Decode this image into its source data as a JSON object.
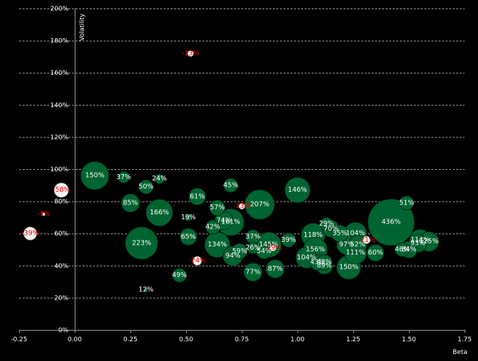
{
  "chart_data": {
    "type": "scatter",
    "subtype": "bubble",
    "title": "",
    "xlabel": "Beta",
    "ylabel": "Volatility",
    "xlim": [
      -0.25,
      1.75
    ],
    "ylim": [
      0,
      200
    ],
    "x_ticks": [
      "-0.25",
      "0.00",
      "0.25",
      "0.50",
      "0.75",
      "1.00",
      "1.25",
      "1.50",
      "1.75"
    ],
    "y_ticks": [
      "0%",
      "20%",
      "40%",
      "60%",
      "80%",
      "100%",
      "120%",
      "140%",
      "160%",
      "180%",
      "200%"
    ],
    "grid": "horizontal dashed",
    "colors": {
      "positive": "#006430",
      "negative": "#f2f2f2",
      "positive_label": "#ffffff",
      "negative_label": "#ff0000",
      "background": "#000000"
    },
    "points": [
      {
        "x": 0.09,
        "y": 96,
        "r": 20,
        "label": "150%",
        "sign": "pos"
      },
      {
        "x": 0.22,
        "y": 95,
        "r": 8,
        "label": "37%",
        "sign": "pos"
      },
      {
        "x": 0.38,
        "y": 94,
        "r": 7,
        "label": "24%",
        "sign": "pos"
      },
      {
        "x": 0.32,
        "y": 89,
        "r": 10,
        "label": "50%",
        "sign": "pos"
      },
      {
        "x": 0.25,
        "y": 79,
        "r": 13,
        "label": "85%",
        "sign": "pos"
      },
      {
        "x": 0.38,
        "y": 73,
        "r": 19,
        "label": "166%",
        "sign": "pos"
      },
      {
        "x": 0.3,
        "y": 54,
        "r": 23,
        "label": "223%",
        "sign": "pos"
      },
      {
        "x": 0.51,
        "y": 70,
        "r": 5,
        "label": "19%",
        "sign": "pos"
      },
      {
        "x": 0.51,
        "y": 58,
        "r": 12,
        "label": "65%",
        "sign": "pos"
      },
      {
        "x": 0.47,
        "y": 34,
        "r": 10,
        "label": "49%",
        "sign": "pos"
      },
      {
        "x": 0.32,
        "y": 25,
        "r": 3,
        "label": "12%",
        "sign": "pos"
      },
      {
        "x": 0.55,
        "y": 83,
        "r": 12,
        "label": "61%",
        "sign": "pos"
      },
      {
        "x": 0.7,
        "y": 90,
        "r": 10,
        "label": "45%",
        "sign": "pos"
      },
      {
        "x": 0.64,
        "y": 76,
        "r": 11,
        "label": "57%",
        "sign": "pos"
      },
      {
        "x": 0.67,
        "y": 68,
        "r": 13,
        "label": "74%",
        "sign": "pos"
      },
      {
        "x": 0.62,
        "y": 64,
        "r": 10,
        "label": "42%",
        "sign": "pos"
      },
      {
        "x": 0.7,
        "y": 67,
        "r": 19,
        "label": "161%",
        "sign": "pos"
      },
      {
        "x": 0.83,
        "y": 78,
        "r": 21,
        "label": "207%",
        "sign": "pos"
      },
      {
        "x": 1.0,
        "y": 87,
        "r": 18,
        "label": "146%",
        "sign": "pos"
      },
      {
        "x": 0.8,
        "y": 58,
        "r": 10,
        "label": "37%",
        "sign": "pos"
      },
      {
        "x": 0.64,
        "y": 53,
        "r": 18,
        "label": "134%",
        "sign": "pos"
      },
      {
        "x": 0.74,
        "y": 49,
        "r": 11,
        "label": "59%",
        "sign": "pos"
      },
      {
        "x": 0.71,
        "y": 46,
        "r": 14,
        "label": "94%",
        "sign": "pos"
      },
      {
        "x": 0.8,
        "y": 51,
        "r": 8,
        "label": "26%",
        "sign": "pos"
      },
      {
        "x": 0.87,
        "y": 53,
        "r": 18,
        "label": "145%",
        "sign": "pos"
      },
      {
        "x": 0.85,
        "y": 49,
        "r": 11,
        "label": "54%",
        "sign": "pos"
      },
      {
        "x": 0.96,
        "y": 56,
        "r": 10,
        "label": "39%",
        "sign": "pos"
      },
      {
        "x": 0.8,
        "y": 36,
        "r": 13,
        "label": "77%",
        "sign": "pos"
      },
      {
        "x": 0.9,
        "y": 38,
        "r": 13,
        "label": "87%",
        "sign": "pos"
      },
      {
        "x": 1.13,
        "y": 66,
        "r": 9,
        "label": "29%",
        "sign": "pos"
      },
      {
        "x": 1.15,
        "y": 63,
        "r": 12,
        "label": "70%",
        "sign": "pos"
      },
      {
        "x": 1.07,
        "y": 59,
        "r": 17,
        "label": "118%",
        "sign": "pos"
      },
      {
        "x": 1.19,
        "y": 60,
        "r": 12,
        "label": "35%",
        "sign": "pos"
      },
      {
        "x": 1.26,
        "y": 60,
        "r": 16,
        "label": "104%",
        "sign": "pos"
      },
      {
        "x": 1.08,
        "y": 50,
        "r": 17,
        "label": "156%",
        "sign": "pos"
      },
      {
        "x": 1.04,
        "y": 45,
        "r": 15,
        "label": "104%",
        "sign": "pos"
      },
      {
        "x": 1.09,
        "y": 42,
        "r": 11,
        "label": "43%",
        "sign": "pos"
      },
      {
        "x": 1.12,
        "y": 42,
        "r": 11,
        "label": "43%",
        "sign": "pos"
      },
      {
        "x": 1.12,
        "y": 40,
        "r": 12,
        "label": "89%",
        "sign": "pos"
      },
      {
        "x": 1.22,
        "y": 53,
        "r": 14,
        "label": "97%",
        "sign": "pos"
      },
      {
        "x": 1.27,
        "y": 53,
        "r": 13,
        "label": "52%",
        "sign": "pos"
      },
      {
        "x": 1.26,
        "y": 48,
        "r": 16,
        "label": "111%",
        "sign": "pos"
      },
      {
        "x": 1.35,
        "y": 48,
        "r": 12,
        "label": "60%",
        "sign": "pos"
      },
      {
        "x": 1.23,
        "y": 39,
        "r": 17,
        "label": "150%",
        "sign": "pos"
      },
      {
        "x": 1.42,
        "y": 67,
        "r": 33,
        "label": "436%",
        "sign": "pos"
      },
      {
        "x": 1.49,
        "y": 79,
        "r": 10,
        "label": "51%",
        "sign": "pos"
      },
      {
        "x": 1.47,
        "y": 50,
        "r": 10,
        "label": "46%",
        "sign": "pos"
      },
      {
        "x": 1.5,
        "y": 50,
        "r": 12,
        "label": "84%",
        "sign": "pos"
      },
      {
        "x": 1.55,
        "y": 56,
        "r": 15,
        "label": "114%",
        "sign": "pos"
      },
      {
        "x": 1.54,
        "y": 54,
        "r": 13,
        "label": "93%",
        "sign": "pos"
      },
      {
        "x": 1.59,
        "y": 55,
        "r": 14,
        "label": "125%",
        "sign": "pos"
      },
      {
        "x": -0.06,
        "y": 87,
        "r": 10,
        "label": "-58%",
        "sign": "neg"
      },
      {
        "x": -0.14,
        "y": 72,
        "r": 2,
        "label": "-3%",
        "sign": "neg"
      },
      {
        "x": -0.2,
        "y": 60,
        "r": 9,
        "label": "-39%",
        "sign": "neg"
      },
      {
        "x": 0.52,
        "y": 172,
        "r": 4,
        "label": "-13%",
        "sign": "neg"
      },
      {
        "x": 0.75,
        "y": 77,
        "r": 4,
        "label": "-13%",
        "sign": "neg"
      },
      {
        "x": 0.55,
        "y": 43,
        "r": 6,
        "label": "-24%",
        "sign": "neg"
      },
      {
        "x": 0.89,
        "y": 51,
        "r": 4,
        "label": "-29%",
        "sign": "neg"
      },
      {
        "x": 1.31,
        "y": 56,
        "r": 5,
        "label": "-21%",
        "sign": "neg"
      }
    ]
  }
}
